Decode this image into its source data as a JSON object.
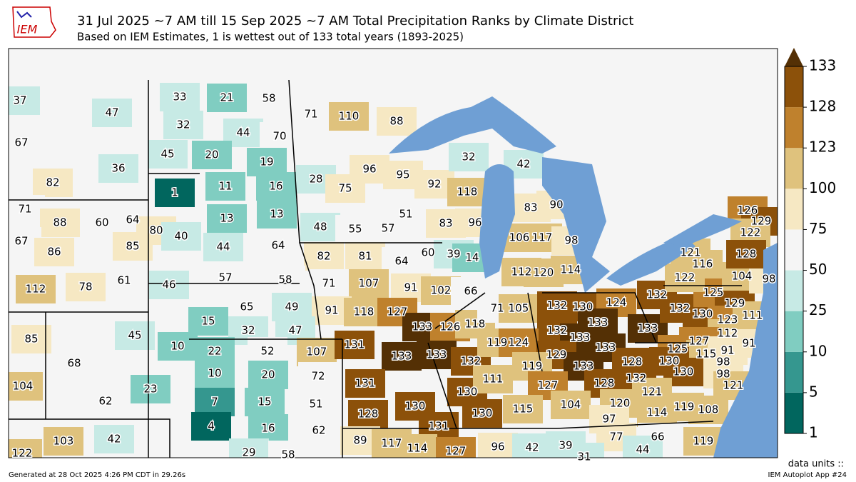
{
  "header": {
    "logo": "IEM",
    "title": "31 Jul 2025 ~7 AM till 15 Sep 2025 ~7 AM Total Precipitation Ranks by Climate District",
    "subtitle": "Based on IEM Estimates, 1 is wettest out of 133 total years (1893-2025)"
  },
  "districts": {
    "values": [
      37,
      47,
      67,
      36,
      82,
      71,
      88,
      60,
      64,
      67,
      86,
      85,
      61,
      112,
      78,
      33,
      21,
      58,
      32,
      44,
      70,
      45,
      20,
      19,
      71,
      110,
      88,
      1,
      11,
      16,
      28,
      75,
      96,
      95,
      92,
      118,
      32,
      42,
      13,
      13,
      80,
      40,
      48,
      55,
      57,
      51,
      83,
      96,
      83,
      90,
      106,
      117,
      98,
      44,
      64,
      82,
      81,
      64,
      60,
      39,
      14,
      57,
      58,
      46,
      71,
      107,
      91,
      102,
      66,
      112,
      120,
      114,
      65,
      49,
      91,
      118,
      127,
      15,
      32,
      47,
      133,
      126,
      118,
      71,
      105,
      132,
      130,
      124,
      133,
      132,
      133,
      133,
      133,
      132,
      132,
      130,
      125,
      129,
      123,
      111,
      112,
      127,
      125,
      115,
      91,
      98,
      98,
      121,
      130,
      130,
      128,
      132,
      121,
      91,
      121,
      116,
      122,
      104,
      98,
      126,
      129,
      122,
      128,
      85,
      45,
      10,
      68,
      104,
      23,
      62,
      22,
      52,
      107,
      131,
      133,
      133,
      132,
      119,
      124,
      129,
      133,
      119,
      10,
      20,
      72,
      131,
      130,
      111,
      127,
      128,
      120,
      104,
      115,
      97,
      114,
      119,
      108,
      7,
      15,
      51,
      128,
      130,
      131,
      130,
      77,
      66,
      119,
      4,
      16,
      62,
      103,
      42,
      122,
      89,
      117,
      114,
      127,
      96,
      42,
      39,
      31,
      44,
      29,
      58
    ]
  },
  "colorbar": {
    "ticks": [
      1,
      5,
      10,
      25,
      50,
      75,
      100,
      123,
      128,
      133
    ],
    "colors": [
      "#01665e",
      "#35978f",
      "#80cdc1",
      "#c7eae5",
      "#f5f5f5",
      "#f6e8c3",
      "#dfc27d",
      "#bf812d",
      "#8c510a"
    ],
    "extend_color": "#543005",
    "units": "data units ::"
  },
  "footer": {
    "generated": "Generated at 28 Oct 2025 4:26 PM CDT in 29.26s",
    "app": "IEM Autoplot App #24"
  }
}
